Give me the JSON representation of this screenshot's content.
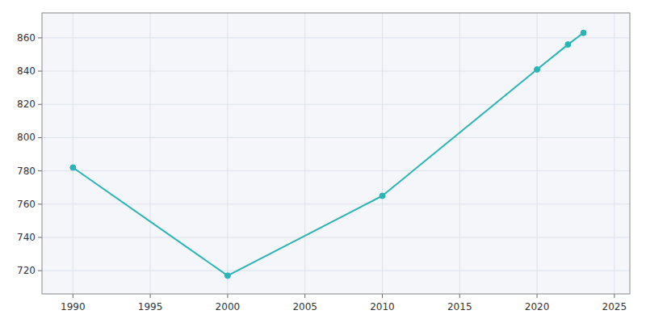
{
  "chart_data": {
    "type": "line",
    "x": [
      1990,
      2000,
      2010,
      2020,
      2022,
      2023
    ],
    "values": [
      782,
      717,
      765,
      841,
      856,
      863
    ],
    "color": "#2ab5b5",
    "marker": "circle",
    "xlim": [
      1988,
      2026
    ],
    "ylim": [
      706,
      875
    ],
    "xticks": [
      1990,
      1995,
      2000,
      2005,
      2010,
      2015,
      2020,
      2025
    ],
    "yticks": [
      720,
      740,
      760,
      780,
      800,
      820,
      840,
      860
    ],
    "grid": true
  }
}
